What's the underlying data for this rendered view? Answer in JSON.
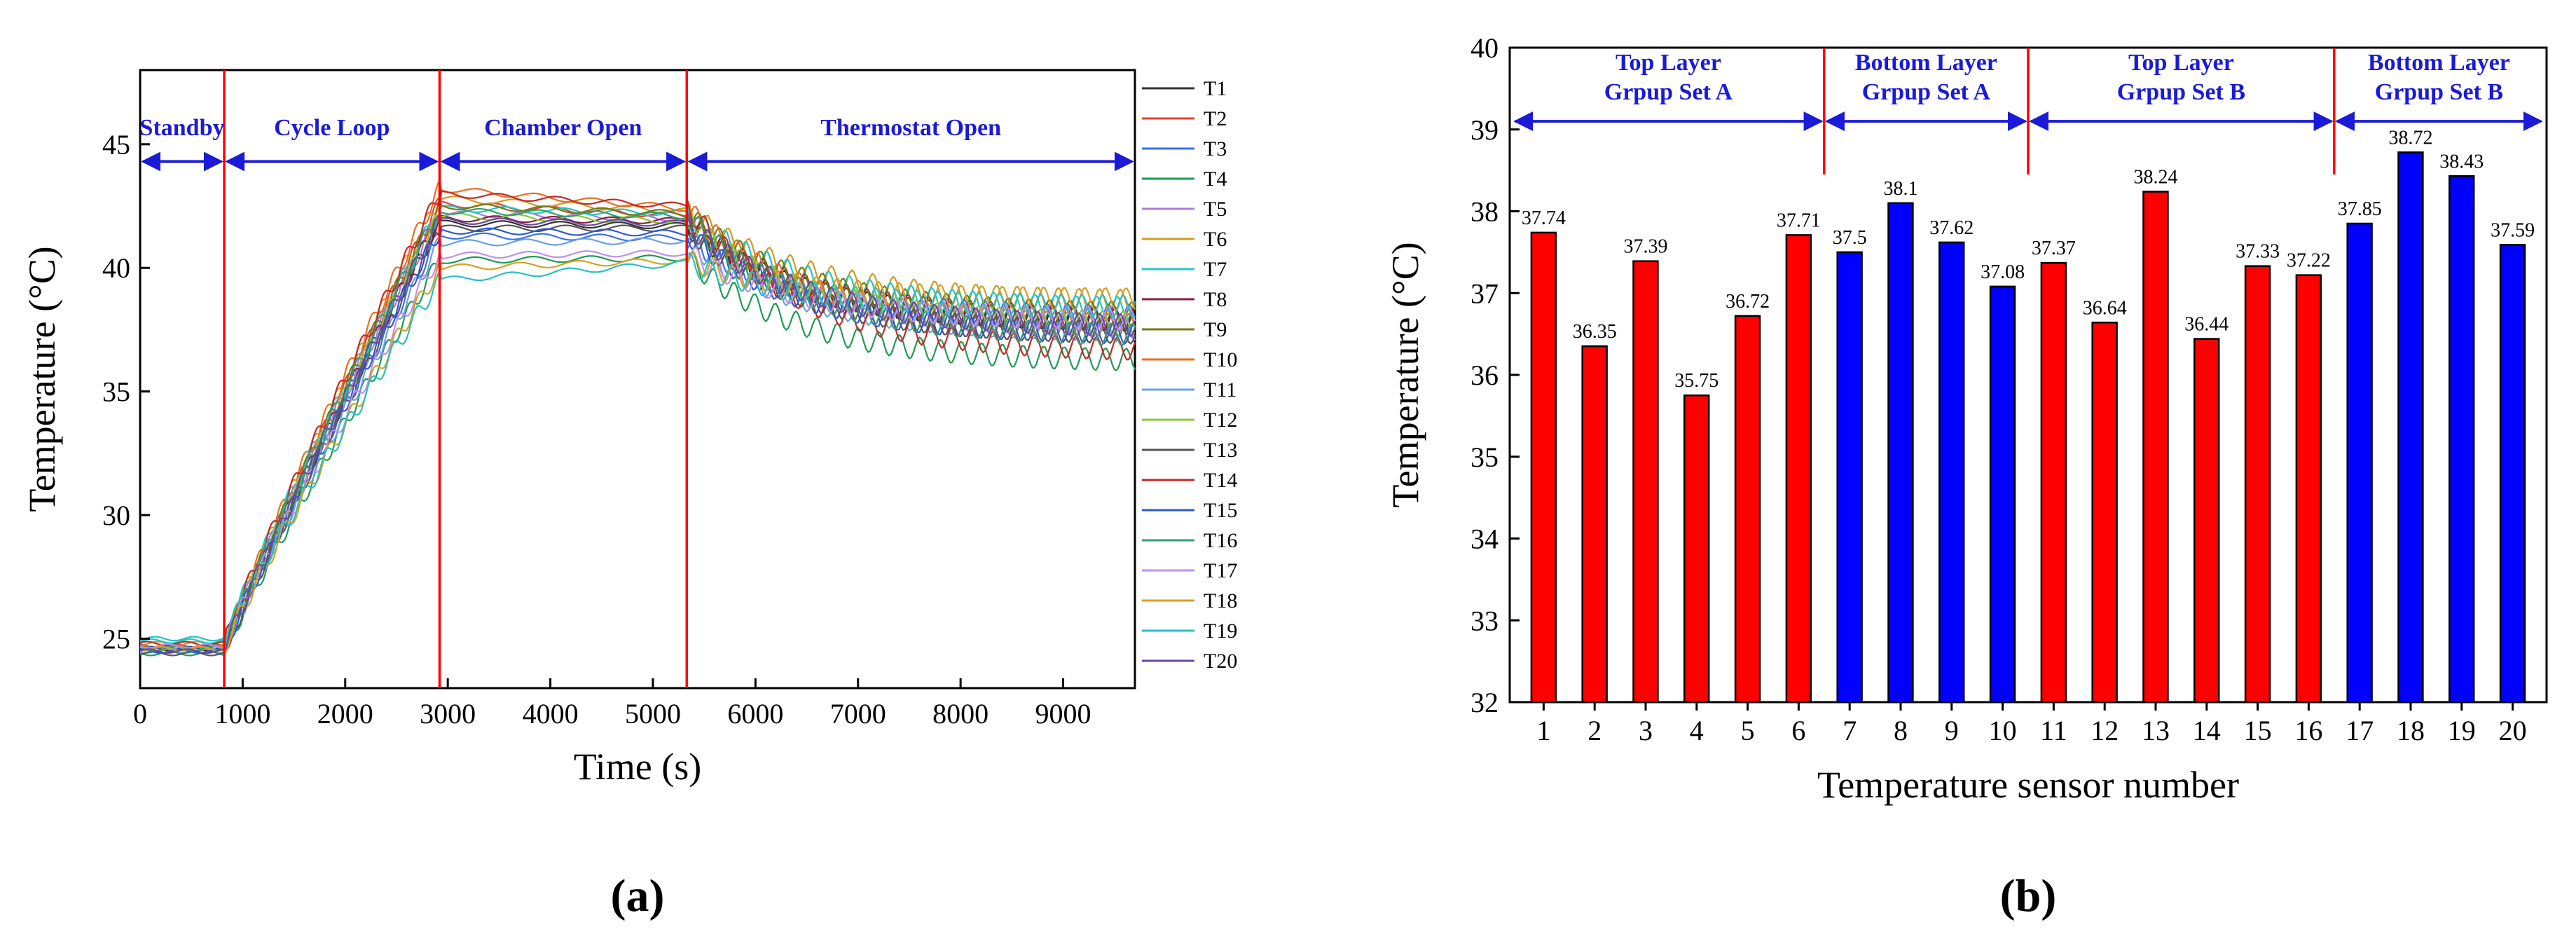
{
  "chart_data": [
    {
      "type": "line",
      "panel_label": "(a)",
      "xlabel": "Time (s)",
      "ylabel": "Temperature (°C)",
      "xlim": [
        0,
        9700
      ],
      "ylim": [
        23,
        48
      ],
      "xticks": [
        0,
        1000,
        2000,
        3000,
        4000,
        5000,
        6000,
        7000,
        8000,
        9000
      ],
      "yticks": [
        25,
        30,
        35,
        40,
        45
      ],
      "phase_boundaries": [
        820,
        2920,
        5330
      ],
      "phases": [
        "Standby",
        "Cycle Loop",
        "Chamber Open",
        "Thermostat Open"
      ],
      "legend_position": "right",
      "series": [
        {
          "name": "T1",
          "color": "#333333",
          "start": 24.6,
          "peak": 41.8,
          "end_chamber": 41.7,
          "final": 37.8
        },
        {
          "name": "T2",
          "color": "#e8403a",
          "start": 24.5,
          "peak": 42.6,
          "end_chamber": 42.1,
          "final": 37.2
        },
        {
          "name": "T3",
          "color": "#3a6fe8",
          "start": 24.7,
          "peak": 41.3,
          "end_chamber": 41.2,
          "final": 38.0
        },
        {
          "name": "T4",
          "color": "#1f9a55",
          "start": 24.4,
          "peak": 40.3,
          "end_chamber": 40.4,
          "final": 36.2
        },
        {
          "name": "T5",
          "color": "#b07ad8",
          "start": 24.6,
          "peak": 42.2,
          "end_chamber": 42.0,
          "final": 37.5
        },
        {
          "name": "T6",
          "color": "#d49a1e",
          "start": 24.8,
          "peak": 42.8,
          "end_chamber": 42.3,
          "final": 38.6
        },
        {
          "name": "T7",
          "color": "#1ec8c8",
          "start": 24.9,
          "peak": 42.4,
          "end_chamber": 42.2,
          "final": 38.3
        },
        {
          "name": "T8",
          "color": "#8a2040",
          "start": 24.5,
          "peak": 42.0,
          "end_chamber": 41.9,
          "final": 37.9
        },
        {
          "name": "T9",
          "color": "#7a7a10",
          "start": 24.6,
          "peak": 42.5,
          "end_chamber": 42.2,
          "final": 38.1
        },
        {
          "name": "T10",
          "color": "#e8701e",
          "start": 24.7,
          "peak": 43.2,
          "end_chamber": 42.4,
          "final": 37.6
        },
        {
          "name": "T11",
          "color": "#6aa0e0",
          "start": 24.5,
          "peak": 41.0,
          "end_chamber": 41.1,
          "final": 37.4
        },
        {
          "name": "T12",
          "color": "#8ac83a",
          "start": 24.6,
          "peak": 42.1,
          "end_chamber": 41.9,
          "final": 37.7
        },
        {
          "name": "T13",
          "color": "#555555",
          "start": 24.4,
          "peak": 41.6,
          "end_chamber": 41.6,
          "final": 37.3
        },
        {
          "name": "T14",
          "color": "#c82828",
          "start": 24.8,
          "peak": 43.0,
          "end_chamber": 42.5,
          "final": 36.6
        },
        {
          "name": "T15",
          "color": "#2a5ad0",
          "start": 24.5,
          "peak": 41.5,
          "end_chamber": 41.4,
          "final": 37.3
        },
        {
          "name": "T16",
          "color": "#30a070",
          "start": 24.6,
          "peak": 42.3,
          "end_chamber": 42.1,
          "final": 37.2
        },
        {
          "name": "T17",
          "color": "#c090e8",
          "start": 24.7,
          "peak": 40.5,
          "end_chamber": 40.6,
          "final": 37.9
        },
        {
          "name": "T18",
          "color": "#d8a020",
          "start": 24.6,
          "peak": 40.0,
          "end_chamber": 40.3,
          "final": 38.7
        },
        {
          "name": "T19",
          "color": "#28c0c0",
          "start": 25.0,
          "peak": 39.5,
          "end_chamber": 40.2,
          "final": 38.4
        },
        {
          "name": "T20",
          "color": "#6a4aa0",
          "start": 24.5,
          "peak": 41.9,
          "end_chamber": 41.8,
          "final": 37.6
        }
      ]
    },
    {
      "type": "bar",
      "panel_label": "(b)",
      "xlabel": "Temperature sensor number",
      "ylabel": "Temperature (°C)",
      "ylim": [
        32,
        40
      ],
      "yticks": [
        32,
        33,
        34,
        35,
        36,
        37,
        38,
        39,
        40
      ],
      "categories": [
        "1",
        "2",
        "3",
        "4",
        "5",
        "6",
        "7",
        "8",
        "9",
        "10",
        "11",
        "12",
        "13",
        "14",
        "15",
        "16",
        "17",
        "18",
        "19",
        "20"
      ],
      "values": [
        37.74,
        36.35,
        37.39,
        35.75,
        36.72,
        37.71,
        37.5,
        38.1,
        37.62,
        37.08,
        37.37,
        36.64,
        38.24,
        36.44,
        37.33,
        37.22,
        37.85,
        38.72,
        38.43,
        37.59
      ],
      "value_labels": [
        "37.74",
        "36.35",
        "37.39",
        "35.75",
        "36.72",
        "37.71",
        "37.5",
        "38.1",
        "37.62",
        "37.08",
        "37.37",
        "36.64",
        "38.24",
        "36.44",
        "37.33",
        "37.22",
        "37.85",
        "38.72",
        "38.43",
        "37.59"
      ],
      "bar_colors": [
        "red",
        "red",
        "red",
        "red",
        "red",
        "red",
        "blue",
        "blue",
        "blue",
        "blue",
        "red",
        "red",
        "red",
        "red",
        "red",
        "red",
        "blue",
        "blue",
        "blue",
        "blue"
      ],
      "colors": {
        "red": "#ff0000",
        "blue": "#0000ff"
      },
      "groups": [
        {
          "line1": "Top Layer",
          "line2": "Grpup Set A",
          "from": 1,
          "to": 6
        },
        {
          "line1": "Bottom Layer",
          "line2": "Grpup Set A",
          "from": 7,
          "to": 10
        },
        {
          "line1": "Top Layer",
          "line2": "Grpup Set B",
          "from": 11,
          "to": 16
        },
        {
          "line1": "Bottom Layer",
          "line2": "Grpup Set B",
          "from": 17,
          "to": 20
        }
      ]
    }
  ]
}
